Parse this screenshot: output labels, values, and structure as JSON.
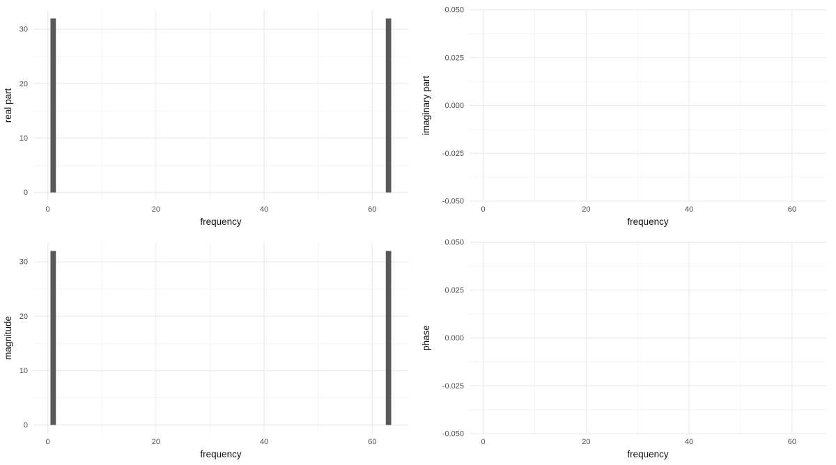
{
  "figure": {
    "background_color": "#FFFFFF",
    "layout": "2x2-grid"
  },
  "style": {
    "bar_color": "#595959",
    "grid_major_color": "#EBEBEB",
    "grid_minor_color": "#F4F4F4",
    "tick_label_color": "#4D4D4D",
    "axis_title_color": "#111111",
    "tick_label_font_px": 11,
    "axis_title_font_px": 13.5
  },
  "chart_data": [
    {
      "name": "real-part",
      "type": "bar",
      "title": "",
      "xlabel": "frequency",
      "ylabel": "real part",
      "legend_position": "none",
      "grid": true,
      "xlim": [
        -2.65,
        66.65
      ],
      "ylim": [
        -1.6,
        33.6
      ],
      "xticks": {
        "values": [
          0,
          20,
          40,
          60
        ],
        "labels": [
          "0",
          "20",
          "40",
          "60"
        ]
      },
      "yticks": {
        "values": [
          0,
          10,
          20,
          30
        ],
        "labels": [
          "0",
          "10",
          "20",
          "30"
        ]
      },
      "xminor": [
        10,
        30,
        50
      ],
      "yminor": [
        5,
        15,
        25
      ],
      "bar_width": 1,
      "bars": [
        {
          "x": 1,
          "height": 32
        },
        {
          "x": 63,
          "height": 32
        }
      ]
    },
    {
      "name": "imaginary-part",
      "type": "bar",
      "title": "",
      "xlabel": "frequency",
      "ylabel": "imaginary part",
      "legend_position": "none",
      "grid": true,
      "xlim": [
        -2.65,
        66.65
      ],
      "ylim": [
        -0.05,
        0.05
      ],
      "xticks": {
        "values": [
          0,
          20,
          40,
          60
        ],
        "labels": [
          "0",
          "20",
          "40",
          "60"
        ]
      },
      "yticks": {
        "values": [
          0.05,
          0.025,
          0,
          -0.025,
          -0.05
        ],
        "labels": [
          "0.050",
          "0.025",
          "0.000",
          "-0.025",
          "-0.050"
        ]
      },
      "xminor": [
        10,
        30,
        50
      ],
      "yminor": [
        0.0375,
        0.0125,
        -0.0125,
        -0.0375
      ],
      "bar_width": 1,
      "bars": []
    },
    {
      "name": "magnitude",
      "type": "bar",
      "title": "",
      "xlabel": "frequency",
      "ylabel": "magnitude",
      "legend_position": "none",
      "grid": true,
      "xlim": [
        -2.65,
        66.65
      ],
      "ylim": [
        -1.6,
        33.6
      ],
      "xticks": {
        "values": [
          0,
          20,
          40,
          60
        ],
        "labels": [
          "0",
          "20",
          "40",
          "60"
        ]
      },
      "yticks": {
        "values": [
          0,
          10,
          20,
          30
        ],
        "labels": [
          "0",
          "10",
          "20",
          "30"
        ]
      },
      "xminor": [
        10,
        30,
        50
      ],
      "yminor": [
        5,
        15,
        25
      ],
      "bar_width": 1,
      "bars": [
        {
          "x": 1,
          "height": 32
        },
        {
          "x": 63,
          "height": 32
        }
      ]
    },
    {
      "name": "phase",
      "type": "bar",
      "title": "",
      "xlabel": "frequency",
      "ylabel": "phase",
      "legend_position": "none",
      "grid": true,
      "xlim": [
        -2.65,
        66.65
      ],
      "ylim": [
        -0.05,
        0.05
      ],
      "xticks": {
        "values": [
          0,
          20,
          40,
          60
        ],
        "labels": [
          "0",
          "20",
          "40",
          "60"
        ]
      },
      "yticks": {
        "values": [
          0.05,
          0.025,
          0,
          -0.025,
          -0.05
        ],
        "labels": [
          "0.050",
          "0.025",
          "0.000",
          "-0.025",
          "-0.050"
        ]
      },
      "xminor": [
        10,
        30,
        50
      ],
      "yminor": [
        0.0375,
        0.0125,
        -0.0125,
        -0.0375
      ],
      "bar_width": 1,
      "bars": []
    }
  ]
}
